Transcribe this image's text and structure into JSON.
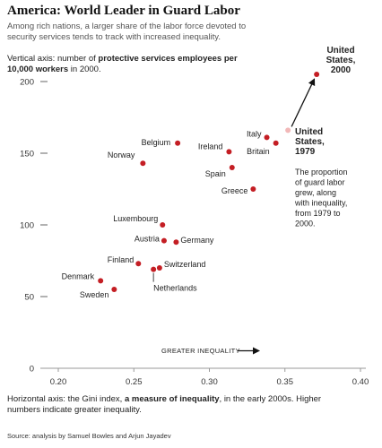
{
  "title": "America: World Leader in Guard Labor",
  "subtitle": "Among rich nations, a larger share of the labor force devoted to security services tends to track with increased inequality.",
  "y_intro": {
    "prefix": "Vertical axis: number of ",
    "bold": "protective services employees per 10,000 workers",
    "suffix": " in 2000."
  },
  "x_intro": {
    "prefix": "Horizontal axis: the Gini index, ",
    "bold": "a measure of inequality",
    "suffix": ", in the early 2000s. Higher numbers indicate greater inequality."
  },
  "source": "Source: analysis by Samuel Bowles and Arjun Jayadev",
  "direction_label": "GREATER INEQUALITY",
  "us_2000_label": [
    "United",
    "States,",
    "2000"
  ],
  "us_1979_label": [
    "United",
    "States,",
    "1979"
  ],
  "us_note": [
    "The proportion",
    "of guard labor",
    "grew, along",
    "with inequality,",
    "from 1979 to",
    "2000."
  ],
  "colors": {
    "point": "#c41e24",
    "point_faded": "#f2b8b8",
    "axis": "#999999",
    "text": "#222222"
  },
  "chart_data": {
    "type": "scatter",
    "xlim": [
      0.2,
      0.4
    ],
    "ylim": [
      0,
      210
    ],
    "xticks": [
      0.2,
      0.25,
      0.3,
      0.35,
      0.4
    ],
    "xtick_labels": [
      "0.20",
      "0.25",
      "0.30",
      "0.35",
      "0.40"
    ],
    "yticks": [
      0,
      50,
      100,
      150,
      200
    ],
    "ytick_labels": [
      "0",
      "50",
      "100",
      "150",
      "200"
    ],
    "grid": false,
    "points": [
      {
        "name": "Belgium",
        "x": 0.279,
        "y": 157
      },
      {
        "name": "Norway",
        "x": 0.256,
        "y": 143
      },
      {
        "name": "Ireland",
        "x": 0.313,
        "y": 151
      },
      {
        "name": "Italy",
        "x": 0.338,
        "y": 161
      },
      {
        "name": "Britain",
        "x": 0.344,
        "y": 157
      },
      {
        "name": "Spain",
        "x": 0.315,
        "y": 140
      },
      {
        "name": "Greece",
        "x": 0.329,
        "y": 125
      },
      {
        "name": "Luxembourg",
        "x": 0.269,
        "y": 100
      },
      {
        "name": "Austria",
        "x": 0.27,
        "y": 89
      },
      {
        "name": "Germany",
        "x": 0.278,
        "y": 88
      },
      {
        "name": "Finland",
        "x": 0.253,
        "y": 73
      },
      {
        "name": "Switzerland",
        "x": 0.267,
        "y": 70
      },
      {
        "name": "Netherlands",
        "x": 0.263,
        "y": 69
      },
      {
        "name": "Denmark",
        "x": 0.228,
        "y": 61
      },
      {
        "name": "Sweden",
        "x": 0.237,
        "y": 55
      },
      {
        "name": "United States, 2000",
        "x": 0.371,
        "y": 205
      },
      {
        "name": "United States, 1979",
        "x": 0.352,
        "y": 166
      }
    ]
  }
}
